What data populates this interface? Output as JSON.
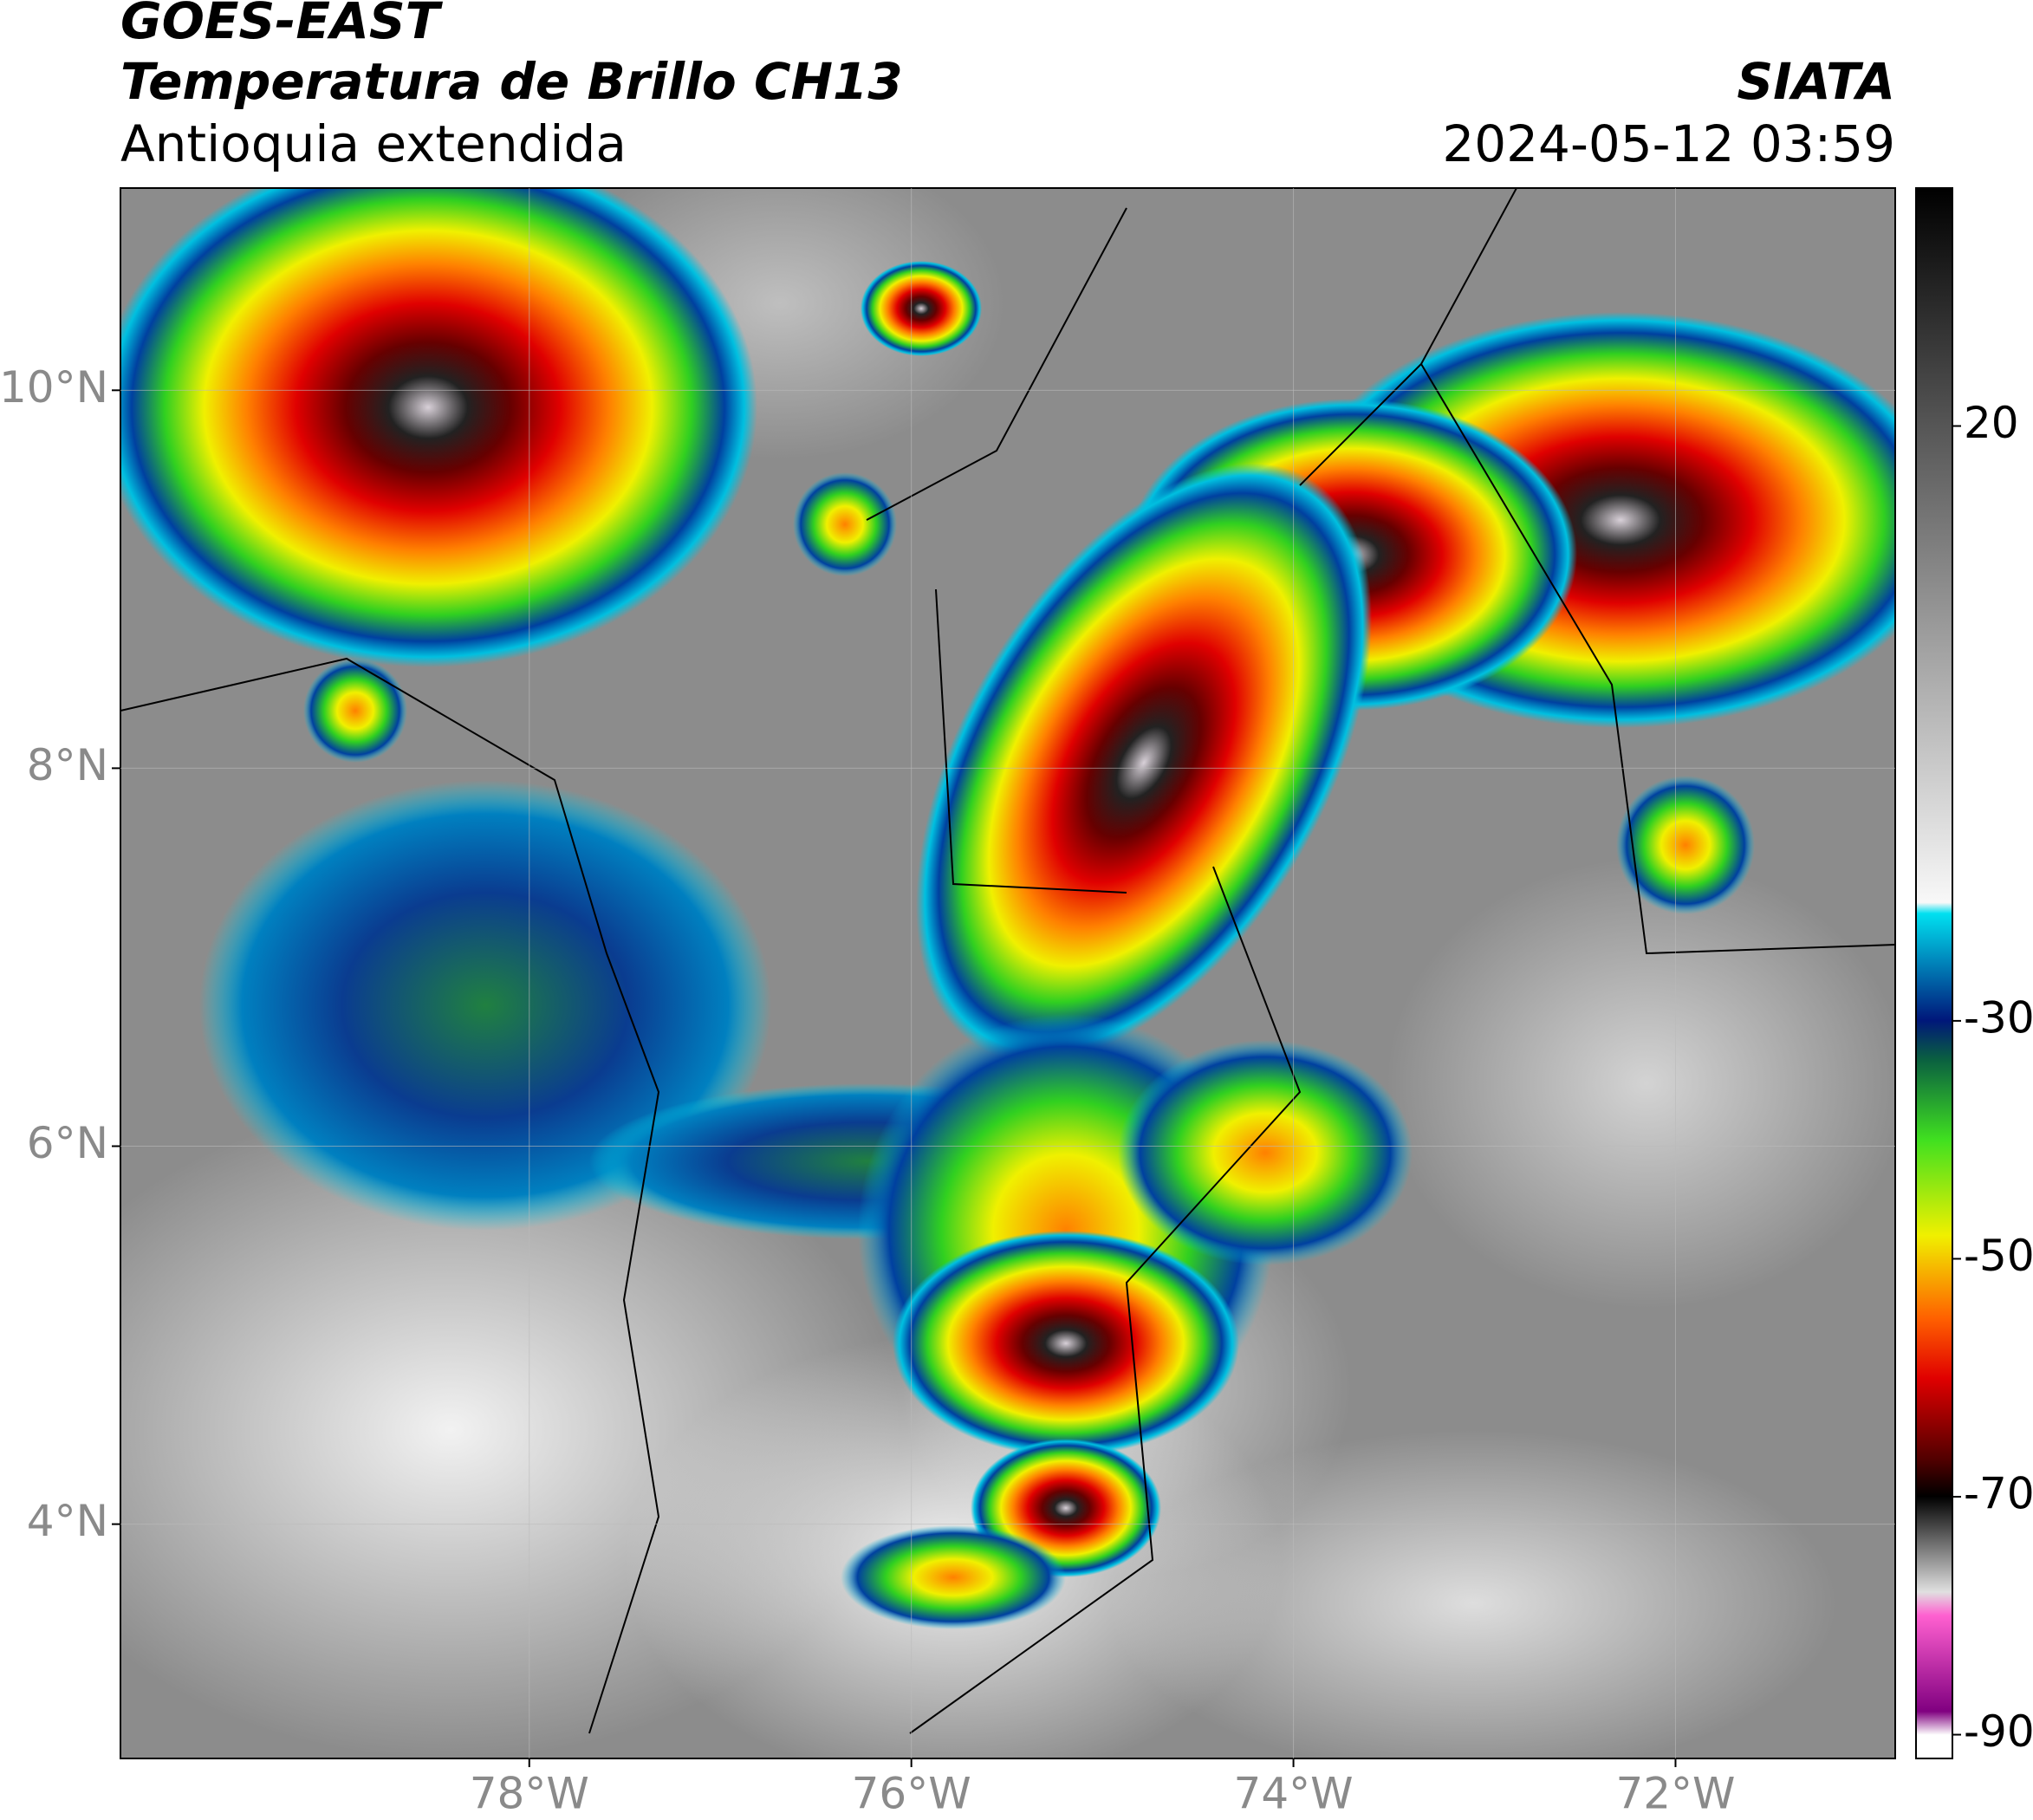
{
  "header": {
    "title": "GOES-EAST",
    "subtitle": "Temperatura de Brillo CH13",
    "region": "Antioquia extendida",
    "source": "SIATA",
    "datetime": "2024-05-12 03:59"
  },
  "map": {
    "lonlim": [
      -80.14,
      -70.85
    ],
    "latlim": [
      2.76,
      11.07
    ],
    "xticks": [
      {
        "value": -78,
        "label": "78°W"
      },
      {
        "value": -76,
        "label": "76°W"
      },
      {
        "value": -74,
        "label": "74°W"
      },
      {
        "value": -72,
        "label": "72°W"
      }
    ],
    "yticks": [
      {
        "value": 10,
        "label": "10°N"
      },
      {
        "value": 8,
        "label": "8°N"
      },
      {
        "value": 6,
        "label": "6°N"
      },
      {
        "value": 4,
        "label": "4°N"
      }
    ],
    "grid": true
  },
  "colorbar": {
    "lim": [
      -92,
      40
    ],
    "ticks": [
      20,
      -30,
      -50,
      -70,
      -90
    ]
  }
}
